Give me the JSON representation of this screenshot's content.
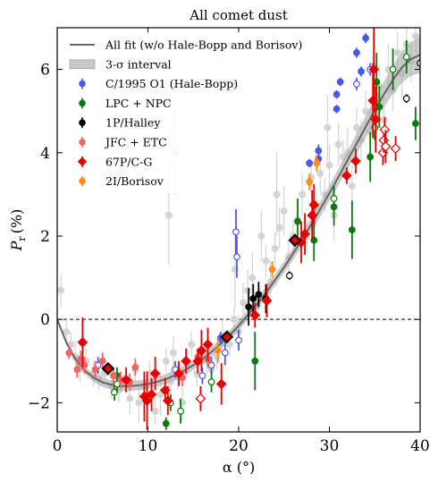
{
  "chart_data": {
    "type": "scatter",
    "title": "All comet dust",
    "xlabel": "α (°)",
    "ylabel_symbol": "P",
    "ylabel_subscript": "r",
    "ylabel_unit": "(%)",
    "xlim": [
      0,
      40
    ],
    "ylim": [
      -2.7,
      7.0
    ],
    "xticks": [
      0,
      10,
      20,
      30,
      40
    ],
    "yticks": [
      -2,
      0,
      2,
      4,
      6
    ],
    "xtick_labels": [
      "0",
      "10",
      "20",
      "30",
      "40"
    ],
    "ytick_labels": [
      "−2",
      "0",
      "2",
      "4",
      "6"
    ],
    "zero_line": "dashed",
    "legend_position": "top-left",
    "legend": [
      {
        "label": "All fit (w/o Hale-Bopp and Borisov)",
        "kind": "line",
        "color": "#666666"
      },
      {
        "label": "3-σ interval",
        "kind": "band",
        "color": "#c8c8c8"
      },
      {
        "label": "C/1995 O1 (Hale-Bopp)",
        "kind": "errpoint",
        "color": "#4a5ae8"
      },
      {
        "label": "LPC + NPC",
        "kind": "errpoint",
        "color": "#0a7a0a"
      },
      {
        "label": "1P/Halley",
        "kind": "errpoint",
        "color": "#000000"
      },
      {
        "label": "JFC + ETC",
        "kind": "errpoint",
        "color": "#f06464"
      },
      {
        "label": "67P/C-G",
        "kind": "errdiamond",
        "color": "#e80000"
      },
      {
        "label": "2I/Borisov",
        "kind": "errpoint",
        "color": "#ff8c1a"
      }
    ],
    "fit_curve": {
      "x": [
        0,
        1,
        2,
        3,
        4,
        5,
        6,
        7,
        8,
        9,
        10,
        11,
        12,
        13,
        14,
        15,
        16,
        17,
        18,
        19,
        20,
        21,
        22,
        23,
        24,
        25,
        26,
        27,
        28,
        29,
        30,
        31,
        32,
        33,
        34,
        35,
        36,
        37,
        38,
        39,
        40
      ],
      "y": [
        0.0,
        -0.55,
        -0.95,
        -1.22,
        -1.4,
        -1.51,
        -1.57,
        -1.6,
        -1.6,
        -1.58,
        -1.55,
        -1.5,
        -1.43,
        -1.34,
        -1.23,
        -1.1,
        -0.95,
        -0.78,
        -0.59,
        -0.38,
        -0.15,
        0.1,
        0.36,
        0.64,
        0.94,
        1.25,
        1.58,
        1.92,
        2.28,
        2.65,
        3.03,
        3.42,
        3.82,
        4.22,
        4.62,
        5.02,
        5.4,
        5.75,
        6.05,
        6.25,
        6.35
      ],
      "sigma3_halfwidth": [
        0.05,
        0.06,
        0.08,
        0.09,
        0.1,
        0.11,
        0.11,
        0.12,
        0.12,
        0.12,
        0.12,
        0.12,
        0.12,
        0.12,
        0.12,
        0.12,
        0.12,
        0.12,
        0.12,
        0.12,
        0.12,
        0.12,
        0.13,
        0.13,
        0.14,
        0.14,
        0.15,
        0.16,
        0.17,
        0.18,
        0.19,
        0.2,
        0.22,
        0.24,
        0.26,
        0.28,
        0.31,
        0.34,
        0.37,
        0.4,
        0.44
      ]
    },
    "series": [
      {
        "name": "all comet dust (background)",
        "color": "#d4d4d4",
        "marker": "circle",
        "filled": true,
        "points": [
          [
            0.4,
            0.7,
            0.4
          ],
          [
            1,
            -0.3,
            0.3
          ],
          [
            1.5,
            -0.6,
            0.3
          ],
          [
            2,
            -0.9,
            0.4
          ],
          [
            2.5,
            -1.2,
            0.3
          ],
          [
            3.2,
            -1.0,
            0.3
          ],
          [
            4,
            -1.3,
            0.3
          ],
          [
            4.6,
            -1.4,
            0.3
          ],
          [
            5.2,
            -1.3,
            0.2
          ],
          [
            6,
            -1.6,
            0.3
          ],
          [
            6.8,
            -1.7,
            0.3
          ],
          [
            7.4,
            -1.5,
            0.2
          ],
          [
            8,
            -1.9,
            0.4
          ],
          [
            8.6,
            -1.2,
            0.3
          ],
          [
            9,
            -2.0,
            0.5
          ],
          [
            9.6,
            -1.6,
            0.3
          ],
          [
            10.2,
            -1.3,
            0.3
          ],
          [
            10.8,
            -2.2,
            0.3
          ],
          [
            11.4,
            -1.8,
            0.5
          ],
          [
            12,
            -1.0,
            0.3
          ],
          [
            12.5,
            -1.5,
            0.3
          ],
          [
            12.3,
            2.5,
            1.2
          ],
          [
            12.8,
            -0.8,
            0.4
          ],
          [
            13.3,
            -1.4,
            0.3
          ],
          [
            13.8,
            -2.0,
            0.4
          ],
          [
            14.3,
            -1.1,
            0.3
          ],
          [
            14.8,
            -0.6,
            0.3
          ],
          [
            15.4,
            -1.3,
            0.3
          ],
          [
            16,
            -0.7,
            0.4
          ],
          [
            16.5,
            -1.0,
            0.3
          ],
          [
            17,
            -1.2,
            0.3
          ],
          [
            17.6,
            -0.9,
            0.3
          ],
          [
            18.2,
            -0.4,
            0.4
          ],
          [
            19,
            -0.6,
            0.3
          ],
          [
            19.5,
            0.0,
            0.3
          ],
          [
            20,
            -0.3,
            0.4
          ],
          [
            20.5,
            0.4,
            0.5
          ],
          [
            21,
            0.7,
            0.5
          ],
          [
            21.5,
            1.0,
            0.6
          ],
          [
            22,
            0.3,
            0.3
          ],
          [
            22.5,
            2.0,
            0.6
          ],
          [
            23,
            1.4,
            0.4
          ],
          [
            23.5,
            0.9,
            0.5
          ],
          [
            24,
            1.7,
            0.4
          ],
          [
            24.5,
            2.2,
            0.5
          ],
          [
            25,
            2.6,
            0.6
          ],
          [
            25.5,
            1.5,
            0.4
          ],
          [
            26,
            2.0,
            0.4
          ],
          [
            26.5,
            2.4,
            0.5
          ],
          [
            27,
            3.0,
            0.5
          ],
          [
            27.5,
            2.0,
            0.5
          ],
          [
            28,
            3.4,
            0.4
          ],
          [
            28.5,
            2.7,
            0.5
          ],
          [
            29,
            3.5,
            0.5
          ],
          [
            29.5,
            3.0,
            0.4
          ],
          [
            30,
            3.7,
            0.5
          ],
          [
            30.5,
            2.5,
            0.6
          ],
          [
            31,
            4.2,
            0.5
          ],
          [
            31.5,
            3.9,
            0.4
          ],
          [
            32,
            4.0,
            0.6
          ],
          [
            32.5,
            3.2,
            0.5
          ],
          [
            33,
            4.6,
            0.5
          ],
          [
            33.5,
            4.3,
            0.5
          ],
          [
            34,
            5.0,
            0.5
          ],
          [
            34.5,
            4.5,
            0.6
          ],
          [
            35,
            5.2,
            0.5
          ],
          [
            35.5,
            5.6,
            0.5
          ],
          [
            36,
            4.8,
            0.6
          ],
          [
            36.5,
            6.0,
            0.6
          ],
          [
            37,
            5.5,
            0.5
          ],
          [
            37.5,
            6.4,
            0.5
          ],
          [
            38,
            5.9,
            0.6
          ],
          [
            38.5,
            6.6,
            0.4
          ],
          [
            39,
            6.2,
            0.5
          ],
          [
            39.5,
            6.8,
            0.4
          ],
          [
            13,
            4.0,
            1.0
          ],
          [
            19.6,
            1.2,
            0.9
          ],
          [
            24.2,
            3.0,
            1.0
          ],
          [
            29.8,
            4.6,
            0.8
          ]
        ]
      },
      {
        "name": "C/1995 O1 (Hale-Bopp)",
        "color": "#4a5ae8",
        "marker": "circle",
        "filled": true,
        "points": [
          [
            30.8,
            5.4,
            0.1
          ],
          [
            30.8,
            5.05,
            0.1
          ],
          [
            31.2,
            5.7,
            0.1
          ],
          [
            33.5,
            5.95,
            0.12
          ],
          [
            33.0,
            6.4,
            0.12
          ],
          [
            34.0,
            6.75,
            0.12
          ],
          [
            28.8,
            4.05,
            0.15
          ],
          [
            28.8,
            3.85,
            0.12
          ],
          [
            27.8,
            3.75,
            0.1
          ],
          [
            18.0,
            -0.45,
            0.15
          ]
        ]
      },
      {
        "name": "C/1995 O1 (Hale-Bopp)",
        "color": "#4a5ae8",
        "marker": "circle",
        "filled": false,
        "points": [
          [
            19.7,
            2.1,
            0.55
          ],
          [
            19.8,
            1.5,
            0.5
          ],
          [
            33.0,
            5.65,
            0.15
          ],
          [
            34.5,
            6.0,
            0.15
          ],
          [
            16.0,
            -1.35,
            0.2
          ],
          [
            13.0,
            -1.2,
            0.2
          ],
          [
            17.0,
            -1.1,
            0.2
          ],
          [
            4.5,
            -1.1,
            0.2
          ],
          [
            18.5,
            -0.8,
            0.3
          ],
          [
            20.0,
            -0.5,
            0.25
          ]
        ]
      },
      {
        "name": "LPC + NPC",
        "color": "#0a7a0a",
        "marker": "circle",
        "filled": true,
        "points": [
          [
            21.8,
            -1.0,
            0.7
          ],
          [
            26.5,
            2.35,
            0.55
          ],
          [
            28.3,
            1.9,
            0.5
          ],
          [
            30.5,
            2.7,
            0.45
          ],
          [
            32.5,
            2.15,
            0.7
          ],
          [
            34.5,
            3.9,
            0.6
          ],
          [
            35.2,
            5.7,
            0.7
          ],
          [
            35.5,
            5.1,
            0.5
          ],
          [
            39.5,
            4.7,
            0.4
          ],
          [
            12.0,
            -2.5,
            0.15
          ],
          [
            6.6,
            -1.35,
            0.2
          ]
        ]
      },
      {
        "name": "LPC + NPC",
        "color": "#0a7a0a",
        "marker": "circle",
        "filled": false,
        "points": [
          [
            6.3,
            -1.75,
            0.2
          ],
          [
            6.6,
            -1.55,
            0.2
          ],
          [
            12.5,
            -2.0,
            0.2
          ],
          [
            13.6,
            -2.2,
            0.3
          ],
          [
            17.0,
            -1.5,
            0.25
          ],
          [
            30.5,
            2.9,
            0.3
          ],
          [
            37.0,
            6.0,
            0.5
          ],
          [
            38.5,
            6.3,
            0.4
          ],
          [
            35.0,
            4.6,
            0.3
          ]
        ]
      },
      {
        "name": "1P/Halley",
        "color": "#000000",
        "marker": "circle",
        "filled": true,
        "points": [
          [
            21.1,
            0.3,
            0.45
          ],
          [
            21.6,
            0.5,
            0.35
          ],
          [
            22.2,
            0.6,
            0.3
          ],
          [
            23.0,
            0.5,
            0.35
          ]
        ]
      },
      {
        "name": "1P/Halley",
        "color": "#000000",
        "marker": "circle",
        "filled": false,
        "points": [
          [
            25.6,
            1.05,
            0.1
          ],
          [
            38.5,
            5.3,
            0.1
          ],
          [
            40.0,
            6.15,
            0.1
          ]
        ]
      },
      {
        "name": "JFC + ETC",
        "color": "#f06464",
        "marker": "circle",
        "filled": true,
        "points": [
          [
            1.3,
            -0.8,
            0.15
          ],
          [
            2.2,
            -1.2,
            0.2
          ],
          [
            2.6,
            -0.95,
            0.2
          ],
          [
            3.0,
            -1.1,
            0.2
          ],
          [
            4.2,
            -1.2,
            0.2
          ],
          [
            5.0,
            -1.0,
            0.2
          ],
          [
            6.2,
            -1.35,
            0.2
          ],
          [
            7.0,
            -1.45,
            0.2
          ],
          [
            8.0,
            -1.5,
            0.2
          ],
          [
            8.6,
            -1.15,
            0.2
          ],
          [
            13.8,
            -1.4,
            0.2
          ],
          [
            15.5,
            -0.9,
            0.2
          ],
          [
            16.6,
            -0.95,
            0.2
          ]
        ]
      },
      {
        "name": "67P/C-G",
        "color": "#e80000",
        "marker": "diamond",
        "filled": true,
        "points": [
          [
            2.8,
            -0.55,
            0.6
          ],
          [
            7.6,
            -1.45,
            0.3
          ],
          [
            9.6,
            -1.85,
            0.6
          ],
          [
            9.9,
            -1.95,
            0.7
          ],
          [
            10.4,
            -1.8,
            0.4
          ],
          [
            10.8,
            -1.3,
            0.4
          ],
          [
            11.9,
            -1.7,
            0.3
          ],
          [
            12.2,
            -1.95,
            0.35
          ],
          [
            13.4,
            -1.3,
            0.3
          ],
          [
            14.2,
            -1.0,
            0.3
          ],
          [
            15.5,
            -1.0,
            0.3
          ],
          [
            15.9,
            -0.75,
            0.5
          ],
          [
            16.6,
            -0.6,
            0.4
          ],
          [
            18.1,
            -1.55,
            0.5
          ],
          [
            21.8,
            0.1,
            0.3
          ],
          [
            23.1,
            0.45,
            0.4
          ],
          [
            26.9,
            1.85,
            0.5
          ],
          [
            27.3,
            2.05,
            0.5
          ],
          [
            28.1,
            2.5,
            0.6
          ],
          [
            28.3,
            2.75,
            0.5
          ],
          [
            31.9,
            3.45,
            0.2
          ],
          [
            32.9,
            3.8,
            0.3
          ],
          [
            34.8,
            5.25,
            0.9
          ],
          [
            34.9,
            6.0,
            1.0
          ],
          [
            35.1,
            4.8,
            0.8
          ]
        ]
      },
      {
        "name": "67P/C-G",
        "color": "#e80000",
        "marker": "diamond",
        "filled": false,
        "points": [
          [
            15.8,
            -1.9,
            0.3
          ],
          [
            35.9,
            4.0,
            0.3
          ],
          [
            36.0,
            4.3,
            0.3
          ],
          [
            36.1,
            4.55,
            0.3
          ],
          [
            36.2,
            4.15,
            0.4
          ],
          [
            37.3,
            4.1,
            0.3
          ]
        ]
      },
      {
        "name": "67P/C-G (highlighted)",
        "color": "#e80000",
        "marker": "diamond",
        "filled": true,
        "highlight": true,
        "points": [
          [
            5.6,
            -1.18,
            0.05
          ],
          [
            18.7,
            -0.42,
            0.05
          ],
          [
            26.2,
            1.9,
            0.05
          ]
        ]
      },
      {
        "name": "2I/Borisov",
        "color": "#ff8c1a",
        "marker": "circle",
        "filled": true,
        "points": [
          [
            23.7,
            1.2,
            0.2
          ],
          [
            27.8,
            3.3,
            0.2
          ],
          [
            28.6,
            3.75,
            0.2
          ],
          [
            17.7,
            -0.75,
            0.3
          ]
        ]
      }
    ]
  }
}
